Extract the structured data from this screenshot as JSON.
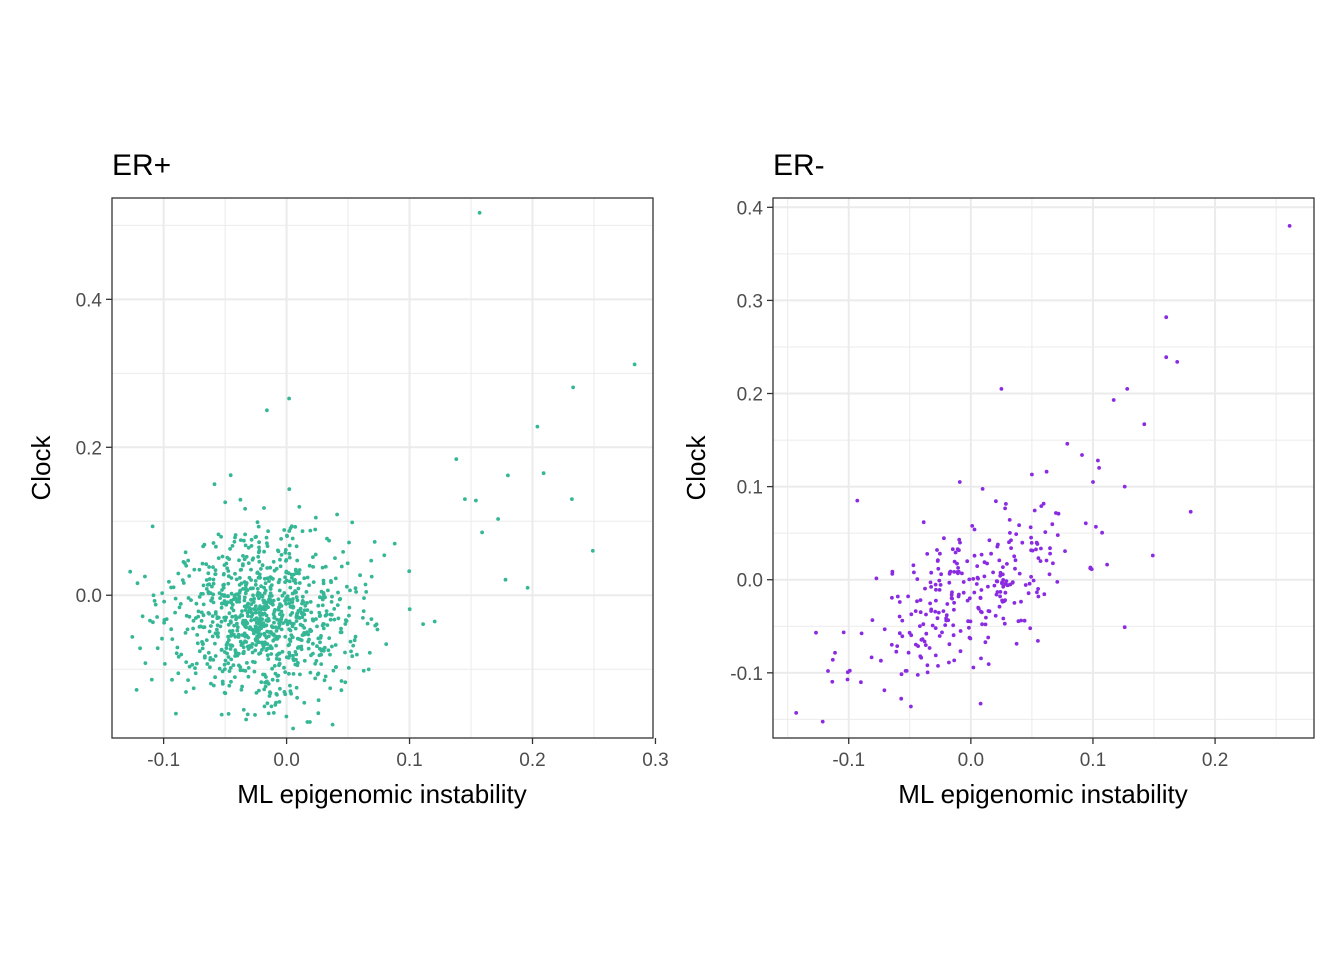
{
  "chart_data": [
    {
      "type": "scatter",
      "title": "ER+",
      "xlabel": "ML epigenomic instability",
      "ylabel": "Clock",
      "xlim": [
        -0.142,
        0.298
      ],
      "ylim": [
        -0.193,
        0.537
      ],
      "x_ticks": [
        -0.1,
        0.0,
        0.1,
        0.2,
        0.3
      ],
      "x_tick_labels": [
        "-0.1",
        "0.0",
        "0.1",
        "0.2",
        "0.3"
      ],
      "y_ticks": [
        0.0,
        0.2,
        0.4
      ],
      "y_tick_labels": [
        "0.0",
        "0.2",
        "0.4"
      ],
      "grid": true,
      "color": "#35b796",
      "points_note_x": [
        0.157,
        0.283,
        0.233,
        0.204,
        0.209,
        0.249,
        0.232,
        0.196,
        0.18,
        0.178,
        0.138,
        0.145,
        0.154,
        0.172,
        0.159,
        -0.122,
        -0.109,
        -0.09,
        0.002,
        -0.016
      ],
      "points_note_y": [
        0.517,
        0.312,
        0.281,
        0.228,
        0.165,
        0.06,
        0.13,
        0.01,
        0.162,
        0.021,
        0.184,
        0.13,
        0.128,
        0.103,
        0.085,
        -0.128,
        0.093,
        -0.16,
        0.266,
        0.25
      ],
      "cluster": {
        "center_x": -0.018,
        "center_y": -0.03,
        "spread_x": 0.034,
        "spread_y": 0.052,
        "count": 980,
        "seed": 7
      }
    },
    {
      "type": "scatter",
      "title": "ER-",
      "xlabel": "ML epigenomic instability",
      "ylabel": "Clock",
      "xlim": [
        -0.162,
        0.281
      ],
      "ylim": [
        -0.17,
        0.41
      ],
      "x_ticks": [
        -0.1,
        0.0,
        0.1,
        0.2
      ],
      "x_tick_labels": [
        "-0.1",
        "0.0",
        "0.1",
        "0.2"
      ],
      "y_ticks": [
        -0.1,
        0.0,
        0.1,
        0.2,
        0.3,
        0.4
      ],
      "y_tick_labels": [
        "-0.1",
        "0.0",
        "0.1",
        "0.2",
        "0.3",
        "0.4"
      ],
      "grid": true,
      "color": "#8a2be2",
      "points_note_x": [
        0.261,
        0.16,
        0.16,
        0.169,
        0.128,
        0.142,
        0.117,
        0.025,
        0.079,
        0.091,
        0.18,
        0.149,
        0.126,
        -0.143,
        -0.093,
        -0.113,
        -0.117,
        0.126,
        0.1,
        -0.009,
        0.05,
        0.062,
        0.008
      ],
      "points_note_y": [
        0.38,
        0.282,
        0.239,
        0.234,
        0.205,
        0.167,
        0.193,
        0.205,
        0.146,
        0.134,
        0.073,
        0.026,
        -0.051,
        -0.143,
        0.085,
        -0.086,
        -0.098,
        0.1,
        0.105,
        0.105,
        0.113,
        0.116,
        -0.133
      ],
      "cluster": {
        "slope": 0.62,
        "intercept": -0.012,
        "center_x": 0.0,
        "spread_x": 0.045,
        "spread_y": 0.038,
        "count": 280,
        "seed": 11
      }
    }
  ]
}
